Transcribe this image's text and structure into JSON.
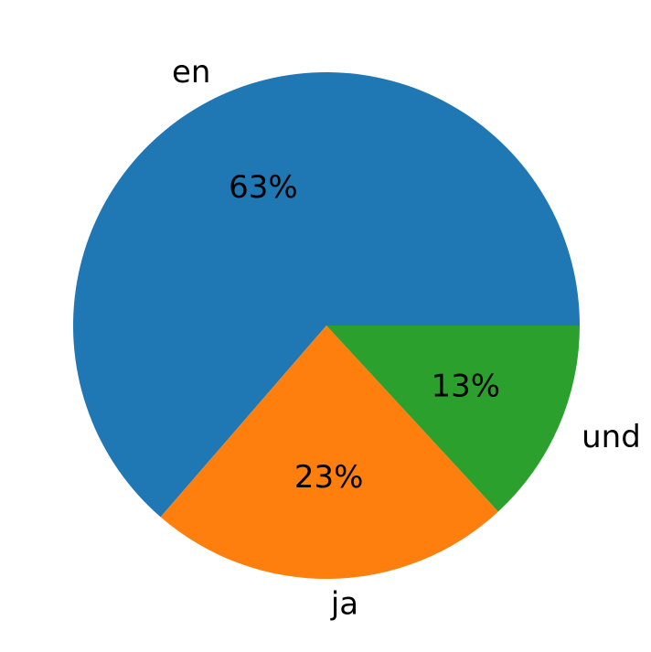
{
  "chart_data": {
    "type": "pie",
    "title": "",
    "slices": [
      {
        "label": "en",
        "value": 63,
        "pct_label": "63%",
        "color": "#1f77b4"
      },
      {
        "label": "ja",
        "value": 23,
        "pct_label": "23%",
        "color": "#ff7f0e"
      },
      {
        "label": "und",
        "value": 13,
        "pct_label": "13%",
        "color": "#2ca02c"
      }
    ],
    "start_angle": "3 o'clock",
    "direction": "counterclockwise",
    "legend": "none"
  }
}
